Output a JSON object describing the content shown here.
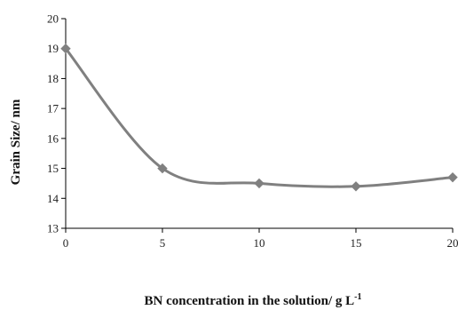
{
  "chart_data": {
    "type": "line",
    "title": "",
    "xlabel": "BN concentration in the solution/ g L",
    "xlabel_superscript": "-1",
    "ylabel": "Grain Size/ nm",
    "x": [
      0,
      5,
      10,
      15,
      20
    ],
    "series": [
      {
        "values": [
          19.0,
          15.0,
          14.5,
          14.4,
          14.7
        ]
      }
    ],
    "xlim": [
      0,
      20
    ],
    "ylim": [
      13,
      20
    ],
    "xticks": [
      "0",
      "5",
      "10",
      "15",
      "20"
    ],
    "yticks": [
      "13",
      "14",
      "15",
      "16",
      "17",
      "18",
      "19",
      "20"
    ],
    "smooth": true,
    "marker": "diamond",
    "grid": false,
    "legend": "none",
    "colors": {
      "line": "#808080",
      "marker": "#808080",
      "axis": "#000000"
    }
  }
}
